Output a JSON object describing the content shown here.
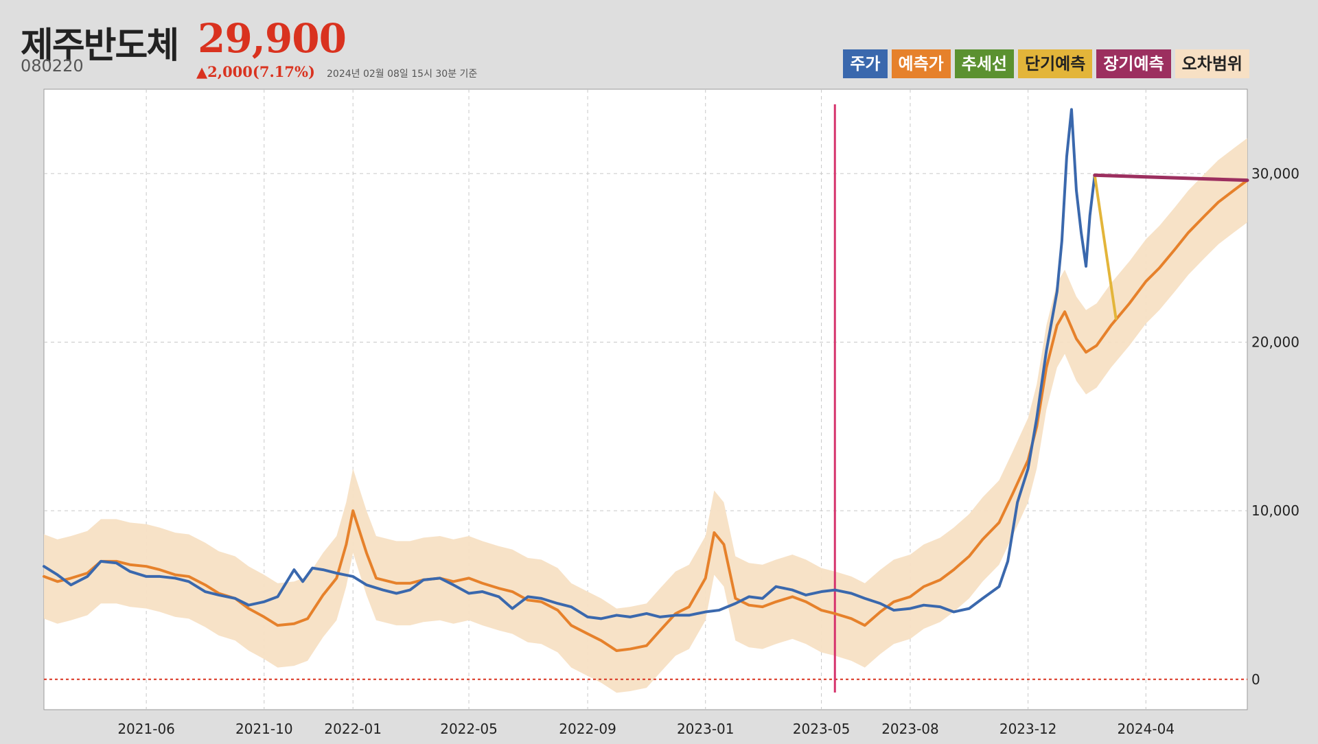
{
  "stock": {
    "name": "제주반도체",
    "price": "29,900",
    "code": "080220",
    "change": "▲2,000(7.17%)",
    "as_of": "2024년 02월 08일 15시 30분 기준"
  },
  "legend": [
    {
      "label": "주가",
      "color": "#3a68ad",
      "text_color": "#ffffff"
    },
    {
      "label": "예측가",
      "color": "#e6812b",
      "text_color": "#ffffff"
    },
    {
      "label": "추세선",
      "color": "#5b9130",
      "text_color": "#ffffff"
    },
    {
      "label": "단기예측",
      "color": "#e3b53a",
      "text_color": "#222222"
    },
    {
      "label": "장기예측",
      "color": "#9c2f5f",
      "text_color": "#ffffff"
    },
    {
      "label": "오차범위",
      "color": "#f7e0c4",
      "text_color": "#222222"
    }
  ],
  "chart_data": {
    "type": "line",
    "x_axis": {
      "type": "date",
      "range": [
        "2021-02-15",
        "2024-07-15"
      ],
      "ticks": [
        "2021-06",
        "2021-10",
        "2022-01",
        "2022-05",
        "2022-09",
        "2023-01",
        "2023-05",
        "2023-08",
        "2023-12",
        "2024-04"
      ]
    },
    "y_axis": {
      "range": [
        -1800,
        35000
      ],
      "ticks": [
        0,
        10000,
        20000,
        30000
      ],
      "tick_labels": [
        "0",
        "10,000",
        "20,000",
        "30,000"
      ],
      "position": "right"
    },
    "grid": true,
    "zero_line": {
      "y": 0,
      "color": "#d9321f",
      "style": "dotted"
    },
    "reference_line": {
      "x": "2023-05-15",
      "color": "#d6336c"
    },
    "series": [
      {
        "name": "주가",
        "color": "#3a68ad",
        "points": [
          [
            "2021-02-15",
            6700
          ],
          [
            "2021-03-01",
            6200
          ],
          [
            "2021-03-15",
            5600
          ],
          [
            "2021-04-01",
            6100
          ],
          [
            "2021-04-15",
            7000
          ],
          [
            "2021-05-01",
            6900
          ],
          [
            "2021-05-15",
            6400
          ],
          [
            "2021-06-01",
            6100
          ],
          [
            "2021-06-15",
            6100
          ],
          [
            "2021-07-01",
            6000
          ],
          [
            "2021-07-15",
            5800
          ],
          [
            "2021-08-01",
            5200
          ],
          [
            "2021-08-15",
            5000
          ],
          [
            "2021-09-01",
            4800
          ],
          [
            "2021-09-15",
            4400
          ],
          [
            "2021-10-01",
            4600
          ],
          [
            "2021-10-15",
            4900
          ],
          [
            "2021-11-01",
            6500
          ],
          [
            "2021-11-10",
            5800
          ],
          [
            "2021-11-20",
            6600
          ],
          [
            "2021-12-01",
            6500
          ],
          [
            "2021-12-15",
            6300
          ],
          [
            "2022-01-01",
            6100
          ],
          [
            "2022-01-15",
            5600
          ],
          [
            "2022-02-01",
            5300
          ],
          [
            "2022-02-15",
            5100
          ],
          [
            "2022-03-01",
            5300
          ],
          [
            "2022-03-15",
            5900
          ],
          [
            "2022-04-01",
            6000
          ],
          [
            "2022-04-15",
            5600
          ],
          [
            "2022-05-01",
            5100
          ],
          [
            "2022-05-15",
            5200
          ],
          [
            "2022-06-01",
            4900
          ],
          [
            "2022-06-15",
            4200
          ],
          [
            "2022-07-01",
            4900
          ],
          [
            "2022-07-15",
            4800
          ],
          [
            "2022-08-01",
            4500
          ],
          [
            "2022-08-15",
            4300
          ],
          [
            "2022-09-01",
            3700
          ],
          [
            "2022-09-15",
            3600
          ],
          [
            "2022-10-01",
            3800
          ],
          [
            "2022-10-15",
            3700
          ],
          [
            "2022-11-01",
            3900
          ],
          [
            "2022-11-15",
            3700
          ],
          [
            "2022-12-01",
            3800
          ],
          [
            "2022-12-15",
            3800
          ],
          [
            "2023-01-01",
            4000
          ],
          [
            "2023-01-15",
            4100
          ],
          [
            "2023-02-01",
            4500
          ],
          [
            "2023-02-15",
            4900
          ],
          [
            "2023-03-01",
            4800
          ],
          [
            "2023-03-15",
            5500
          ],
          [
            "2023-04-01",
            5300
          ],
          [
            "2023-04-15",
            5000
          ],
          [
            "2023-05-01",
            5200
          ],
          [
            "2023-05-15",
            5300
          ],
          [
            "2023-06-01",
            5100
          ],
          [
            "2023-06-15",
            4800
          ],
          [
            "2023-07-01",
            4500
          ],
          [
            "2023-07-15",
            4100
          ],
          [
            "2023-08-01",
            4200
          ],
          [
            "2023-08-15",
            4400
          ],
          [
            "2023-09-01",
            4300
          ],
          [
            "2023-09-15",
            4000
          ],
          [
            "2023-10-01",
            4200
          ],
          [
            "2023-10-15",
            4800
          ],
          [
            "2023-11-01",
            5500
          ],
          [
            "2023-11-10",
            7000
          ],
          [
            "2023-11-20",
            10500
          ],
          [
            "2023-12-01",
            12500
          ],
          [
            "2023-12-10",
            15500
          ],
          [
            "2023-12-20",
            19500
          ],
          [
            "2023-12-31",
            23000
          ],
          [
            "2024-01-05",
            26000
          ],
          [
            "2024-01-10",
            31000
          ],
          [
            "2024-01-15",
            33800
          ],
          [
            "2024-01-20",
            29000
          ],
          [
            "2024-01-25",
            26500
          ],
          [
            "2024-01-30",
            24500
          ],
          [
            "2024-02-03",
            27500
          ],
          [
            "2024-02-08",
            29900
          ]
        ]
      },
      {
        "name": "예측가",
        "color": "#e6812b",
        "points": [
          [
            "2021-02-15",
            6100
          ],
          [
            "2021-03-01",
            5800
          ],
          [
            "2021-03-15",
            6000
          ],
          [
            "2021-04-01",
            6300
          ],
          [
            "2021-04-15",
            7000
          ],
          [
            "2021-05-01",
            7000
          ],
          [
            "2021-05-15",
            6800
          ],
          [
            "2021-06-01",
            6700
          ],
          [
            "2021-06-15",
            6500
          ],
          [
            "2021-07-01",
            6200
          ],
          [
            "2021-07-15",
            6100
          ],
          [
            "2021-08-01",
            5600
          ],
          [
            "2021-08-15",
            5100
          ],
          [
            "2021-09-01",
            4800
          ],
          [
            "2021-09-15",
            4200
          ],
          [
            "2021-10-01",
            3700
          ],
          [
            "2021-10-15",
            3200
          ],
          [
            "2021-11-01",
            3300
          ],
          [
            "2021-11-15",
            3600
          ],
          [
            "2021-12-01",
            5000
          ],
          [
            "2021-12-15",
            6000
          ],
          [
            "2021-12-25",
            8000
          ],
          [
            "2022-01-01",
            10000
          ],
          [
            "2022-01-15",
            7500
          ],
          [
            "2022-01-25",
            6000
          ],
          [
            "2022-02-15",
            5700
          ],
          [
            "2022-03-01",
            5700
          ],
          [
            "2022-03-15",
            5900
          ],
          [
            "2022-04-01",
            6000
          ],
          [
            "2022-04-15",
            5800
          ],
          [
            "2022-05-01",
            6000
          ],
          [
            "2022-05-15",
            5700
          ],
          [
            "2022-06-01",
            5400
          ],
          [
            "2022-06-15",
            5200
          ],
          [
            "2022-07-01",
            4700
          ],
          [
            "2022-07-15",
            4600
          ],
          [
            "2022-08-01",
            4100
          ],
          [
            "2022-08-15",
            3200
          ],
          [
            "2022-09-01",
            2700
          ],
          [
            "2022-09-15",
            2300
          ],
          [
            "2022-10-01",
            1700
          ],
          [
            "2022-10-15",
            1800
          ],
          [
            "2022-11-01",
            2000
          ],
          [
            "2022-11-15",
            2900
          ],
          [
            "2022-12-01",
            3900
          ],
          [
            "2022-12-15",
            4300
          ],
          [
            "2023-01-01",
            6000
          ],
          [
            "2023-01-10",
            8700
          ],
          [
            "2023-01-20",
            8000
          ],
          [
            "2023-02-01",
            4800
          ],
          [
            "2023-02-15",
            4400
          ],
          [
            "2023-03-01",
            4300
          ],
          [
            "2023-03-15",
            4600
          ],
          [
            "2023-04-01",
            4900
          ],
          [
            "2023-04-15",
            4600
          ],
          [
            "2023-05-01",
            4100
          ],
          [
            "2023-05-15",
            3900
          ],
          [
            "2023-06-01",
            3600
          ],
          [
            "2023-06-15",
            3200
          ],
          [
            "2023-07-01",
            4000
          ],
          [
            "2023-07-15",
            4600
          ],
          [
            "2023-08-01",
            4900
          ],
          [
            "2023-08-15",
            5500
          ],
          [
            "2023-09-01",
            5900
          ],
          [
            "2023-09-15",
            6500
          ],
          [
            "2023-10-01",
            7300
          ],
          [
            "2023-10-15",
            8300
          ],
          [
            "2023-11-01",
            9300
          ],
          [
            "2023-11-15",
            11000
          ],
          [
            "2023-12-01",
            13000
          ],
          [
            "2023-12-10",
            15000
          ],
          [
            "2023-12-20",
            18500
          ],
          [
            "2023-12-31",
            21000
          ],
          [
            "2024-01-08",
            21800
          ],
          [
            "2024-01-20",
            20200
          ],
          [
            "2024-01-30",
            19400
          ],
          [
            "2024-02-10",
            19800
          ],
          [
            "2024-02-25",
            21000
          ],
          [
            "2024-03-15",
            22300
          ],
          [
            "2024-04-01",
            23600
          ],
          [
            "2024-04-15",
            24400
          ],
          [
            "2024-05-01",
            25500
          ],
          [
            "2024-05-15",
            26500
          ],
          [
            "2024-06-01",
            27500
          ],
          [
            "2024-06-15",
            28300
          ],
          [
            "2024-07-01",
            29000
          ],
          [
            "2024-07-15",
            29600
          ]
        ]
      },
      {
        "name": "단기예측",
        "color": "#e3b53a",
        "points": [
          [
            "2024-02-08",
            29900
          ],
          [
            "2024-03-01",
            21400
          ]
        ]
      },
      {
        "name": "장기예측",
        "color": "#9c2f5f",
        "points": [
          [
            "2024-02-08",
            29900
          ],
          [
            "2024-07-15",
            29600
          ]
        ]
      }
    ],
    "band": {
      "name": "오차범위",
      "color": "#f7e0c4",
      "half_width": 2500,
      "around": "예측가"
    }
  }
}
